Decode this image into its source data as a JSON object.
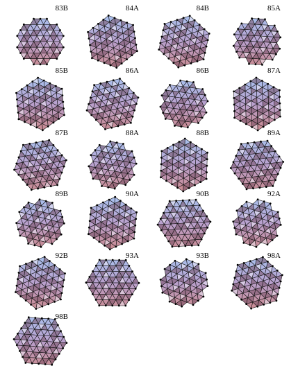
{
  "figure": {
    "items": [
      {
        "label": "83B"
      },
      {
        "label": "84A"
      },
      {
        "label": "84B"
      },
      {
        "label": "85A"
      },
      {
        "label": "85B"
      },
      {
        "label": "86A"
      },
      {
        "label": "86B"
      },
      {
        "label": "87A"
      },
      {
        "label": "87B"
      },
      {
        "label": "88A"
      },
      {
        "label": "88B"
      },
      {
        "label": "89A"
      },
      {
        "label": "89B"
      },
      {
        "label": "90A"
      },
      {
        "label": "90B"
      },
      {
        "label": "92A"
      },
      {
        "label": "92B"
      },
      {
        "label": "93A"
      },
      {
        "label": "93B"
      },
      {
        "label": "98A"
      },
      {
        "label": "98B"
      }
    ]
  }
}
